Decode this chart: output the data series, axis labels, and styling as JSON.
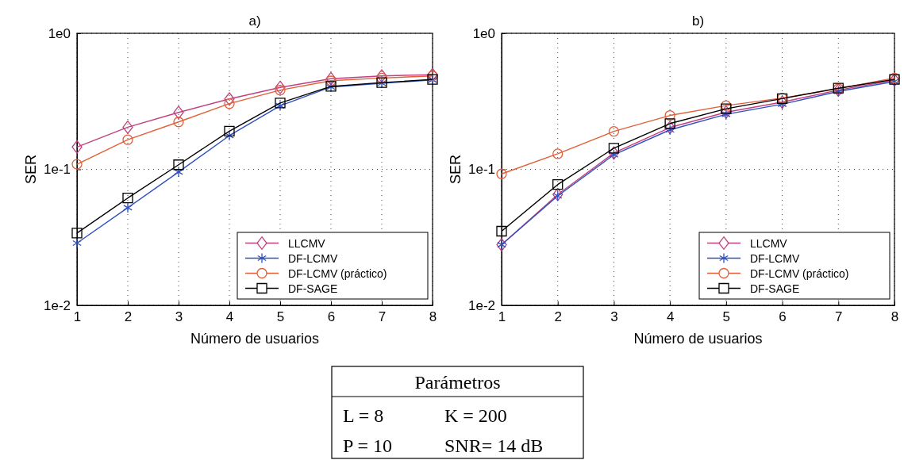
{
  "chart_data": [
    {
      "type": "line",
      "title": "a)",
      "xlabel": "Número de usuarios",
      "ylabel": "SER",
      "log": "y",
      "grid": true,
      "legend": "bottom right",
      "line_style": "solid",
      "x": [
        1,
        2,
        3,
        4,
        5,
        6,
        7,
        8
      ],
      "xlim": [
        1,
        8
      ],
      "xticks": [
        1,
        2,
        3,
        4,
        5,
        6,
        7,
        8
      ],
      "ylim": [
        0.01,
        1
      ],
      "yticks": [
        {
          "value": 0.01,
          "label": "1e-2"
        },
        {
          "value": 0.1,
          "label": "1e-1"
        },
        {
          "value": 1,
          "label": "1e0"
        }
      ],
      "series": [
        {
          "name": "LLCMV",
          "color": "#c0407f",
          "marker": "diamond",
          "values": [
            0.146,
            0.204,
            0.262,
            0.329,
            0.4,
            0.464,
            0.486,
            0.497
          ]
        },
        {
          "name": "DF-LCMV",
          "color": "#3050c0",
          "marker": "cross",
          "values": [
            0.0287,
            0.0522,
            0.0955,
            0.177,
            0.293,
            0.403,
            0.429,
            0.454
          ]
        },
        {
          "name": "DF-LCMV (práctico)",
          "color": "#e0603a",
          "marker": "circle",
          "values": [
            0.109,
            0.165,
            0.223,
            0.304,
            0.382,
            0.448,
            0.469,
            0.486
          ]
        },
        {
          "name": "DF-SAGE",
          "color": "#000000",
          "marker": "square",
          "values": [
            0.034,
            0.0615,
            0.108,
            0.191,
            0.307,
            0.407,
            0.434,
            0.458
          ]
        }
      ]
    },
    {
      "type": "line",
      "title": "b)",
      "xlabel": "Número de usuarios",
      "ylabel": "SER",
      "log": "y",
      "grid": true,
      "legend": "bottom right",
      "line_style": "solid",
      "x": [
        1,
        2,
        3,
        4,
        5,
        6,
        7,
        8
      ],
      "xlim": [
        1,
        8
      ],
      "xticks": [
        1,
        2,
        3,
        4,
        5,
        6,
        7,
        8
      ],
      "ylim": [
        0.01,
        1
      ],
      "yticks": [
        {
          "value": 0.01,
          "label": "1e-2"
        },
        {
          "value": 0.1,
          "label": "1e-1"
        },
        {
          "value": 1,
          "label": "1e0"
        }
      ],
      "series": [
        {
          "name": "LLCMV",
          "color": "#c0407f",
          "marker": "diamond",
          "values": [
            0.0279,
            0.0653,
            0.132,
            0.203,
            0.263,
            0.312,
            0.382,
            0.453
          ]
        },
        {
          "name": "DF-LCMV",
          "color": "#3050c0",
          "marker": "cross",
          "values": [
            0.0279,
            0.0638,
            0.128,
            0.195,
            0.254,
            0.301,
            0.374,
            0.442
          ]
        },
        {
          "name": "DF-LCMV (práctico)",
          "color": "#e0603a",
          "marker": "circle",
          "values": [
            0.0926,
            0.13,
            0.19,
            0.249,
            0.294,
            0.334,
            0.392,
            0.469
          ]
        },
        {
          "name": "DF-SAGE",
          "color": "#000000",
          "marker": "square",
          "values": [
            0.0351,
            0.0773,
            0.143,
            0.217,
            0.279,
            0.331,
            0.395,
            0.458
          ]
        }
      ]
    },
    {
      "type": "other",
      "title": "Parámetros",
      "annotations": [
        "L = 8",
        "K = 200",
        "P = 10",
        "SNR= 14 dB"
      ]
    }
  ]
}
